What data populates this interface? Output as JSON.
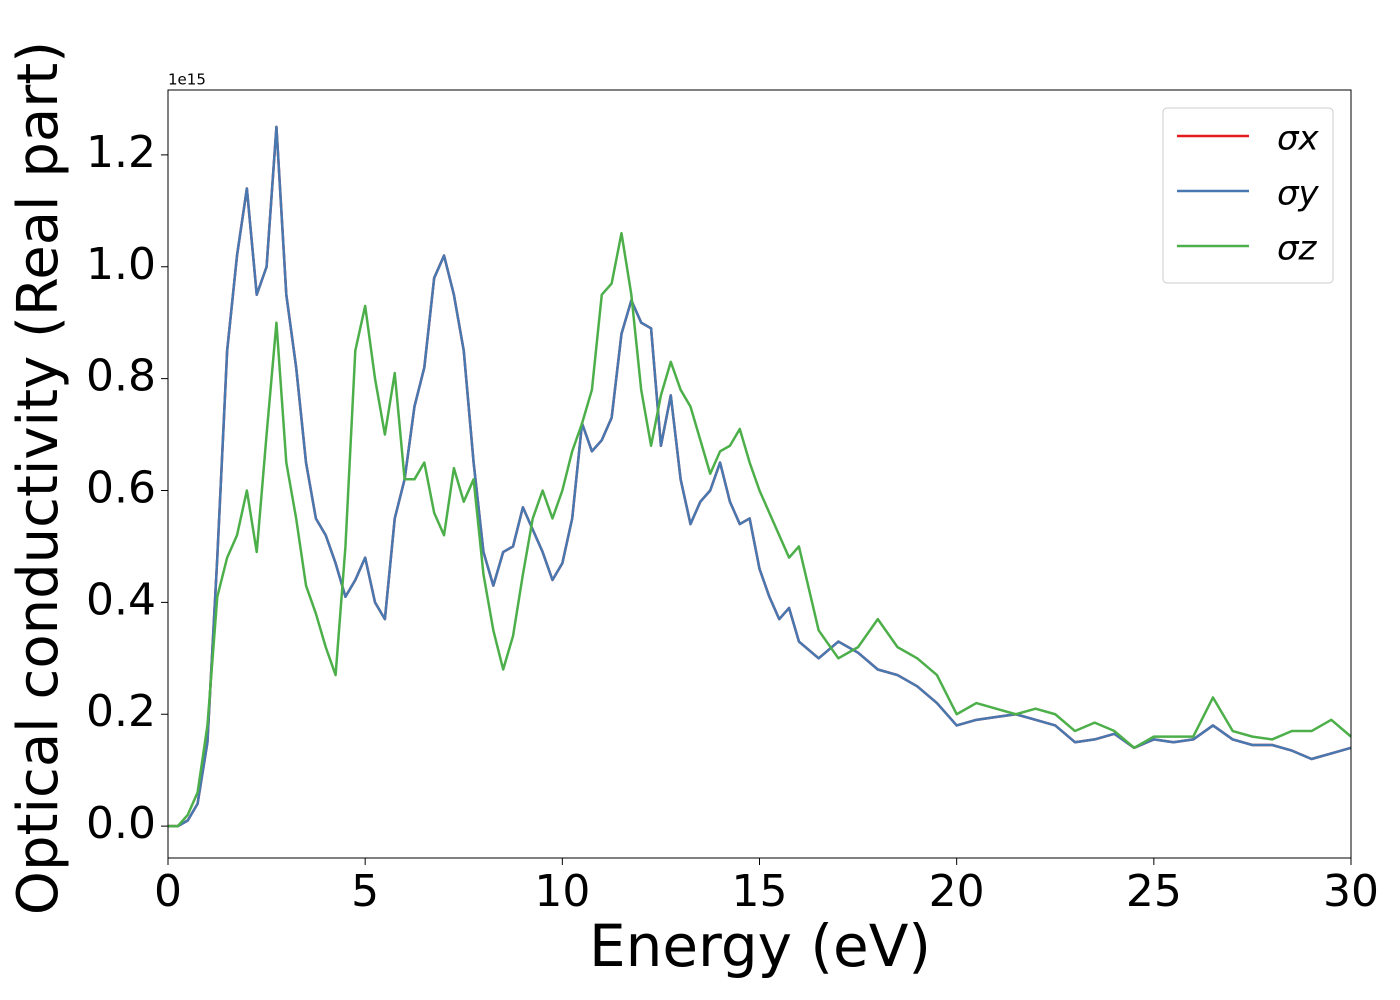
{
  "chart_data": {
    "type": "line",
    "y_offset_label": "1e15",
    "xlabel": "Energy (eV)",
    "ylabel": "Optical conductivity (Real part)",
    "x": [
      0,
      0.25,
      0.5,
      0.75,
      1,
      1.25,
      1.5,
      1.75,
      2,
      2.25,
      2.5,
      2.75,
      3,
      3.25,
      3.5,
      3.75,
      4,
      4.25,
      4.5,
      4.75,
      5,
      5.25,
      5.5,
      5.75,
      6,
      6.25,
      6.5,
      6.75,
      7,
      7.25,
      7.5,
      7.75,
      8,
      8.25,
      8.5,
      8.75,
      9,
      9.25,
      9.5,
      9.75,
      10,
      10.25,
      10.5,
      10.75,
      11,
      11.25,
      11.5,
      11.75,
      12,
      12.25,
      12.5,
      12.75,
      13,
      13.25,
      13.5,
      13.75,
      14,
      14.25,
      14.5,
      14.75,
      15,
      15.25,
      15.5,
      15.75,
      16,
      16.5,
      17,
      17.5,
      18,
      18.5,
      19,
      19.5,
      20,
      20.5,
      21,
      21.5,
      22,
      22.5,
      23,
      23.5,
      24,
      24.5,
      25,
      25.5,
      26,
      26.5,
      27,
      27.5,
      28,
      28.5,
      29,
      29.5,
      30
    ],
    "series": [
      {
        "name": "σx",
        "color": "#e41a1c",
        "values": [
          0,
          0,
          0.01,
          0.04,
          0.15,
          0.48,
          0.85,
          1.02,
          1.14,
          0.95,
          1.0,
          1.25,
          0.95,
          0.82,
          0.65,
          0.55,
          0.52,
          0.47,
          0.41,
          0.44,
          0.48,
          0.4,
          0.37,
          0.55,
          0.62,
          0.75,
          0.82,
          0.98,
          1.02,
          0.95,
          0.85,
          0.65,
          0.49,
          0.43,
          0.49,
          0.5,
          0.57,
          0.53,
          0.49,
          0.44,
          0.47,
          0.55,
          0.72,
          0.67,
          0.69,
          0.73,
          0.88,
          0.94,
          0.9,
          0.89,
          0.68,
          0.77,
          0.62,
          0.54,
          0.58,
          0.6,
          0.65,
          0.58,
          0.54,
          0.55,
          0.46,
          0.41,
          0.37,
          0.39,
          0.33,
          0.3,
          0.33,
          0.31,
          0.28,
          0.27,
          0.25,
          0.22,
          0.18,
          0.19,
          0.195,
          0.2,
          0.19,
          0.18,
          0.15,
          0.155,
          0.165,
          0.14,
          0.155,
          0.15,
          0.155,
          0.18,
          0.155,
          0.145,
          0.145,
          0.135,
          0.12,
          0.13,
          0.14
        ]
      },
      {
        "name": "σy",
        "color": "#4878b0",
        "values": [
          0,
          0,
          0.01,
          0.04,
          0.15,
          0.48,
          0.85,
          1.02,
          1.14,
          0.95,
          1.0,
          1.25,
          0.95,
          0.82,
          0.65,
          0.55,
          0.52,
          0.47,
          0.41,
          0.44,
          0.48,
          0.4,
          0.37,
          0.55,
          0.62,
          0.75,
          0.82,
          0.98,
          1.02,
          0.95,
          0.85,
          0.65,
          0.49,
          0.43,
          0.49,
          0.5,
          0.57,
          0.53,
          0.49,
          0.44,
          0.47,
          0.55,
          0.72,
          0.67,
          0.69,
          0.73,
          0.88,
          0.94,
          0.9,
          0.89,
          0.68,
          0.77,
          0.62,
          0.54,
          0.58,
          0.6,
          0.65,
          0.58,
          0.54,
          0.55,
          0.46,
          0.41,
          0.37,
          0.39,
          0.33,
          0.3,
          0.33,
          0.31,
          0.28,
          0.27,
          0.25,
          0.22,
          0.18,
          0.19,
          0.195,
          0.2,
          0.19,
          0.18,
          0.15,
          0.155,
          0.165,
          0.14,
          0.155,
          0.15,
          0.155,
          0.18,
          0.155,
          0.145,
          0.145,
          0.135,
          0.12,
          0.13,
          0.14
        ]
      },
      {
        "name": "σz",
        "color": "#4daf4a",
        "values": [
          0,
          0,
          0.02,
          0.06,
          0.18,
          0.41,
          0.48,
          0.52,
          0.6,
          0.49,
          0.7,
          0.9,
          0.65,
          0.55,
          0.43,
          0.38,
          0.32,
          0.27,
          0.5,
          0.85,
          0.93,
          0.8,
          0.7,
          0.81,
          0.62,
          0.62,
          0.65,
          0.56,
          0.52,
          0.64,
          0.58,
          0.62,
          0.45,
          0.35,
          0.28,
          0.34,
          0.45,
          0.55,
          0.6,
          0.55,
          0.6,
          0.67,
          0.72,
          0.78,
          0.95,
          0.97,
          1.06,
          0.95,
          0.78,
          0.68,
          0.77,
          0.83,
          0.78,
          0.75,
          0.69,
          0.63,
          0.67,
          0.68,
          0.71,
          0.65,
          0.6,
          0.56,
          0.52,
          0.48,
          0.5,
          0.35,
          0.3,
          0.32,
          0.37,
          0.32,
          0.3,
          0.27,
          0.2,
          0.22,
          0.21,
          0.2,
          0.21,
          0.2,
          0.17,
          0.185,
          0.17,
          0.14,
          0.16,
          0.16,
          0.16,
          0.23,
          0.17,
          0.16,
          0.155,
          0.17,
          0.17,
          0.19,
          0.16
        ]
      }
    ],
    "xlim": [
      0,
      30
    ],
    "xticks": [
      0,
      5,
      10,
      15,
      20,
      25,
      30
    ],
    "ylim": [
      -0.057,
      1.316
    ],
    "yticks": [
      {
        "value": 0,
        "label": "0.0"
      },
      {
        "value": 0.2,
        "label": "0.2"
      },
      {
        "value": 0.4,
        "label": "0.4"
      },
      {
        "value": 0.6,
        "label": "0.6"
      },
      {
        "value": 0.8,
        "label": "0.8"
      },
      {
        "value": 1,
        "label": "1.0"
      },
      {
        "value": 1.2,
        "label": "1.2"
      }
    ],
    "legend": "upper right",
    "grid": false
  }
}
